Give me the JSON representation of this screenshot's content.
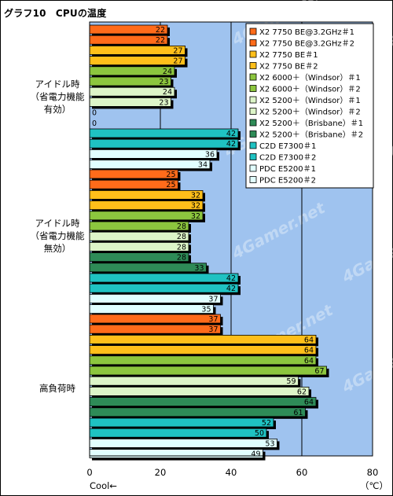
{
  "title": "グラフ10　CPUの温度",
  "watermark": "4Gamer.net",
  "colors": {
    "plot_bg": "#9fc3ef",
    "grid": "#000000"
  },
  "chart_data": {
    "type": "bar",
    "orientation": "horizontal",
    "title": "グラフ10　CPUの温度",
    "xlabel": "Cool←",
    "unit": "（℃）",
    "xlim": [
      0,
      80
    ],
    "x_ticks": [
      0,
      20,
      40,
      60,
      80
    ],
    "grid": true,
    "legend_position": "top-right",
    "categories": [
      "アイドル時\n（省電力機能\n有効）",
      "アイドル時\n（省電力機能\n無効）",
      "高負荷時"
    ],
    "series": [
      {
        "name": "X2 7750 BE@3.2GHz＃1",
        "color": "#ff6b1a",
        "values": [
          22,
          25,
          37
        ]
      },
      {
        "name": "X2 7750 BE@3.2GHz＃2",
        "color": "#ff6b1a",
        "values": [
          22,
          25,
          37
        ]
      },
      {
        "name": "X2 7750 BE＃1",
        "color": "#ffbf1a",
        "values": [
          27,
          32,
          64
        ]
      },
      {
        "name": "X2 7750 BE＃2",
        "color": "#ffbf1a",
        "values": [
          27,
          32,
          64
        ]
      },
      {
        "name": "X2 6000＋（Windsor）＃1",
        "color": "#8cc63e",
        "values": [
          24,
          32,
          64
        ]
      },
      {
        "name": "X2 6000＋（Windsor）＃2",
        "color": "#8cc63e",
        "values": [
          23,
          28,
          67
        ]
      },
      {
        "name": "X2 5200＋（Windsor）＃1",
        "color": "#ddf5c8",
        "values": [
          24,
          28,
          59
        ]
      },
      {
        "name": "X2 5200＋（Windsor）＃2",
        "color": "#ddf5c8",
        "values": [
          23,
          28,
          62
        ]
      },
      {
        "name": "X2 5200＋（Brisbane）＃1",
        "color": "#2e8b57",
        "values": [
          0,
          28,
          64
        ]
      },
      {
        "name": "X2 5200＋（Brisbane）＃2",
        "color": "#2e8b57",
        "values": [
          0,
          33,
          61
        ]
      },
      {
        "name": "C2D E7300＃1",
        "color": "#1fc2c2",
        "values": [
          42,
          42,
          52
        ]
      },
      {
        "name": "C2D E7300＃2",
        "color": "#1fc2c2",
        "values": [
          42,
          42,
          50
        ]
      },
      {
        "name": "PDC E5200＃1",
        "color": "#e1ffff",
        "values": [
          36,
          37,
          53
        ]
      },
      {
        "name": "PDC E5200＃2",
        "color": "#e1ffff",
        "values": [
          34,
          35,
          49
        ]
      }
    ]
  }
}
